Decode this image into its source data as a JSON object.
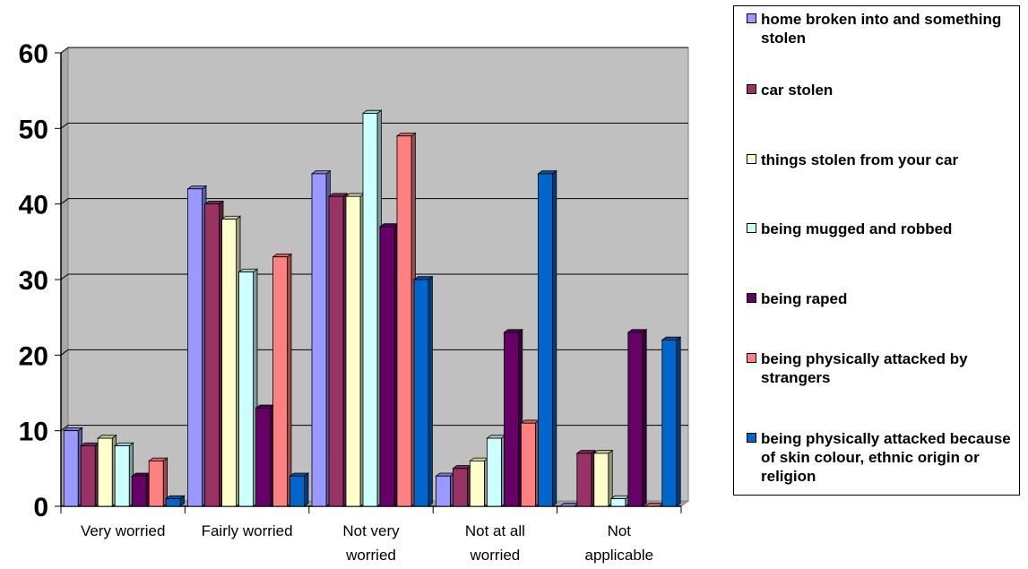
{
  "chart_data": {
    "type": "bar",
    "categories": [
      "Very worried",
      "Fairly worried",
      "Not very worried",
      "Not at all worried",
      "Not applicable"
    ],
    "category_lines": [
      [
        "Very worried"
      ],
      [
        "Fairly worried"
      ],
      [
        "Not very",
        "worried"
      ],
      [
        "Not at all",
        "worried"
      ],
      [
        "Not",
        "applicable"
      ]
    ],
    "ylim": [
      0,
      60
    ],
    "yticks": [
      "0",
      "10",
      "20",
      "30",
      "40",
      "50",
      "60"
    ],
    "grid": true,
    "legend_position": "right",
    "series": [
      {
        "name": "home broken into and something stolen",
        "color": "#9999ff",
        "values": [
          10,
          42,
          44,
          4,
          0
        ]
      },
      {
        "name": "car stolen",
        "color": "#993366",
        "values": [
          8,
          40,
          41,
          5,
          7
        ]
      },
      {
        "name": "things stolen from your car",
        "color": "#ffffcc",
        "values": [
          9,
          38,
          41,
          6,
          7
        ]
      },
      {
        "name": "being mugged and robbed",
        "color": "#ccffff",
        "values": [
          8,
          31,
          52,
          9,
          1
        ]
      },
      {
        "name": "being raped",
        "color": "#660066",
        "values": [
          4,
          13,
          37,
          23,
          23
        ]
      },
      {
        "name": "being physically attacked by strangers",
        "color": "#ff8080",
        "values": [
          6,
          33,
          49,
          11,
          0
        ]
      },
      {
        "name": "being physically attacked because of skin colour, ethnic origin or religion",
        "color": "#0066cc",
        "values": [
          1,
          4,
          30,
          44,
          22
        ]
      }
    ]
  },
  "legend": {
    "items": [
      {
        "label": "home broken into and something stolen",
        "color": "#9999ff"
      },
      {
        "label": "car stolen",
        "color": "#993366"
      },
      {
        "label": "things stolen from your car",
        "color": "#ffffcc"
      },
      {
        "label": "being mugged and robbed",
        "color": "#ccffff"
      },
      {
        "label": "being raped",
        "color": "#660066"
      },
      {
        "label": "being physically attacked by strangers",
        "color": "#ff8080"
      },
      {
        "label": "being physically attacked because of skin colour, ethnic origin or religion",
        "color": "#0066cc"
      }
    ]
  }
}
